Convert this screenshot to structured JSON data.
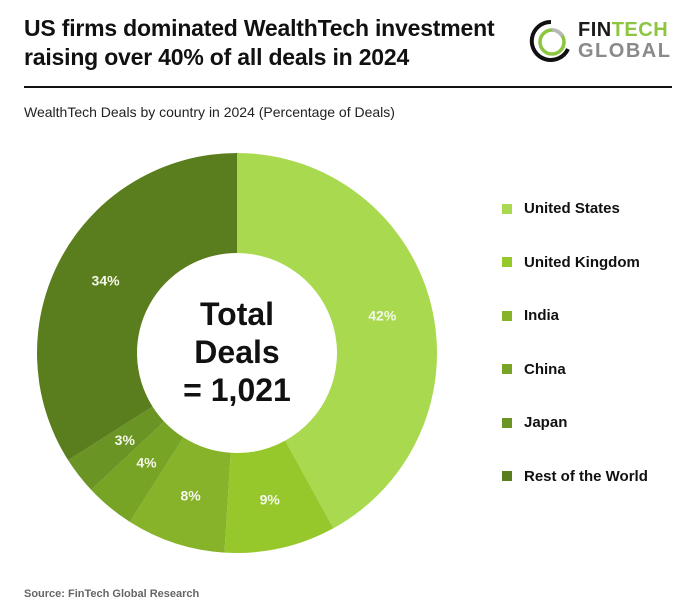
{
  "header": {
    "title_line1": "US firms dominated WealthTech investment",
    "title_line2": "raising over 40% of all deals in 2024",
    "subtitle": "WealthTech Deals by country in 2024 (Percentage of Deals)"
  },
  "logo": {
    "fin": "FIN",
    "tech": "TECH",
    "global": "GLOBAL",
    "icon": "ring-logo-icon"
  },
  "center": {
    "line1": "Total",
    "line2": "Deals",
    "line3": "= 1,021"
  },
  "source": "Source: FinTech Global Research",
  "chart_data": {
    "type": "pie",
    "subtype": "donut",
    "title": "US firms dominated WealthTech investment raising over 40% of all deals in 2024",
    "subtitle": "WealthTech Deals by country in 2024 (Percentage of Deals)",
    "center_label": "Total Deals = 1,021",
    "total_deals": 1021,
    "categories": [
      "United States",
      "United Kingdom",
      "India",
      "China",
      "Japan",
      "Rest of the World"
    ],
    "values": [
      42,
      9,
      8,
      4,
      3,
      34
    ],
    "labels": [
      "42%",
      "9%",
      "8%",
      "4%",
      "3%",
      "34%"
    ],
    "colors": [
      "#a9d94f",
      "#96c82c",
      "#86b32a",
      "#78a426",
      "#6a9423",
      "#5a7d1d"
    ],
    "unit": "%",
    "legend_position": "right",
    "start_angle": "top, clockwise",
    "source": "FinTech Global Research"
  }
}
